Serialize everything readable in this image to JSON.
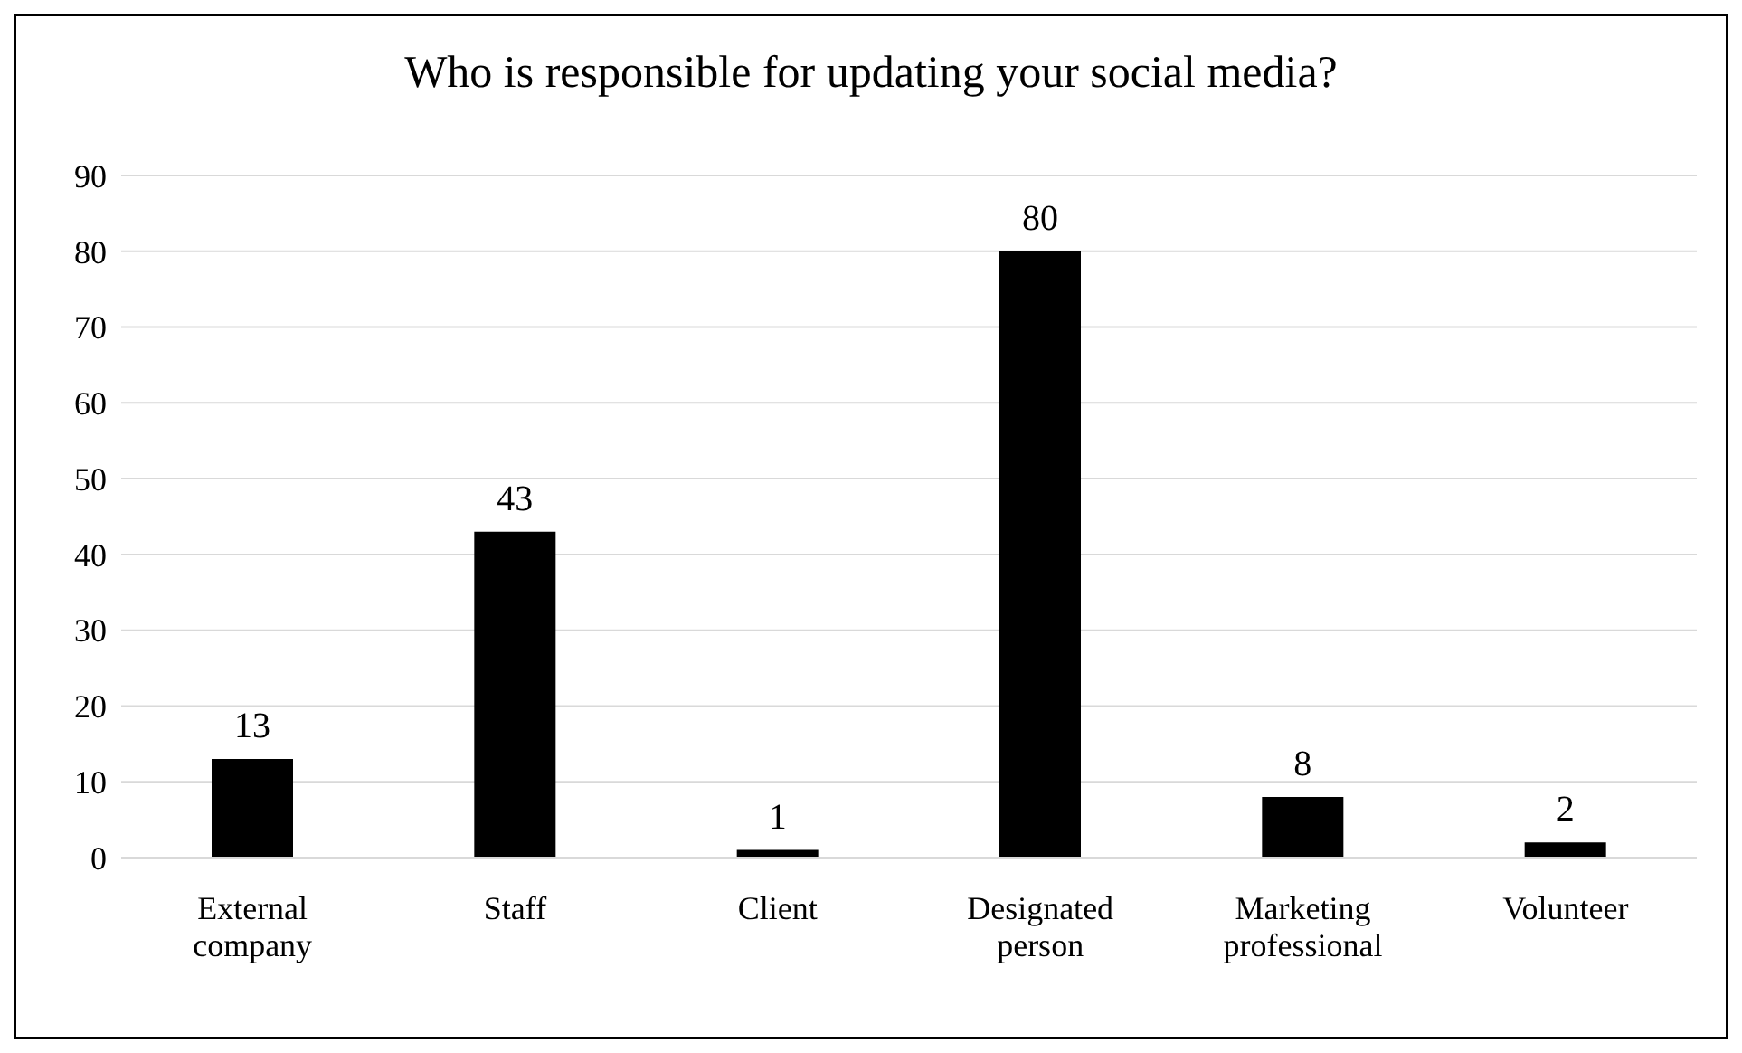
{
  "chart_data": {
    "type": "bar",
    "title": "Who is responsible for updating your social media?",
    "categories": [
      "External company",
      "Staff",
      "Client",
      "Designated person",
      "Marketing professional",
      "Volunteer"
    ],
    "values": [
      13,
      43,
      1,
      80,
      8,
      2
    ],
    "color": "#000000",
    "ylim": [
      0,
      90
    ],
    "yticks": [
      0,
      10,
      20,
      30,
      40,
      50,
      60,
      70,
      80,
      90
    ],
    "grid": "y",
    "data_labels": true
  }
}
